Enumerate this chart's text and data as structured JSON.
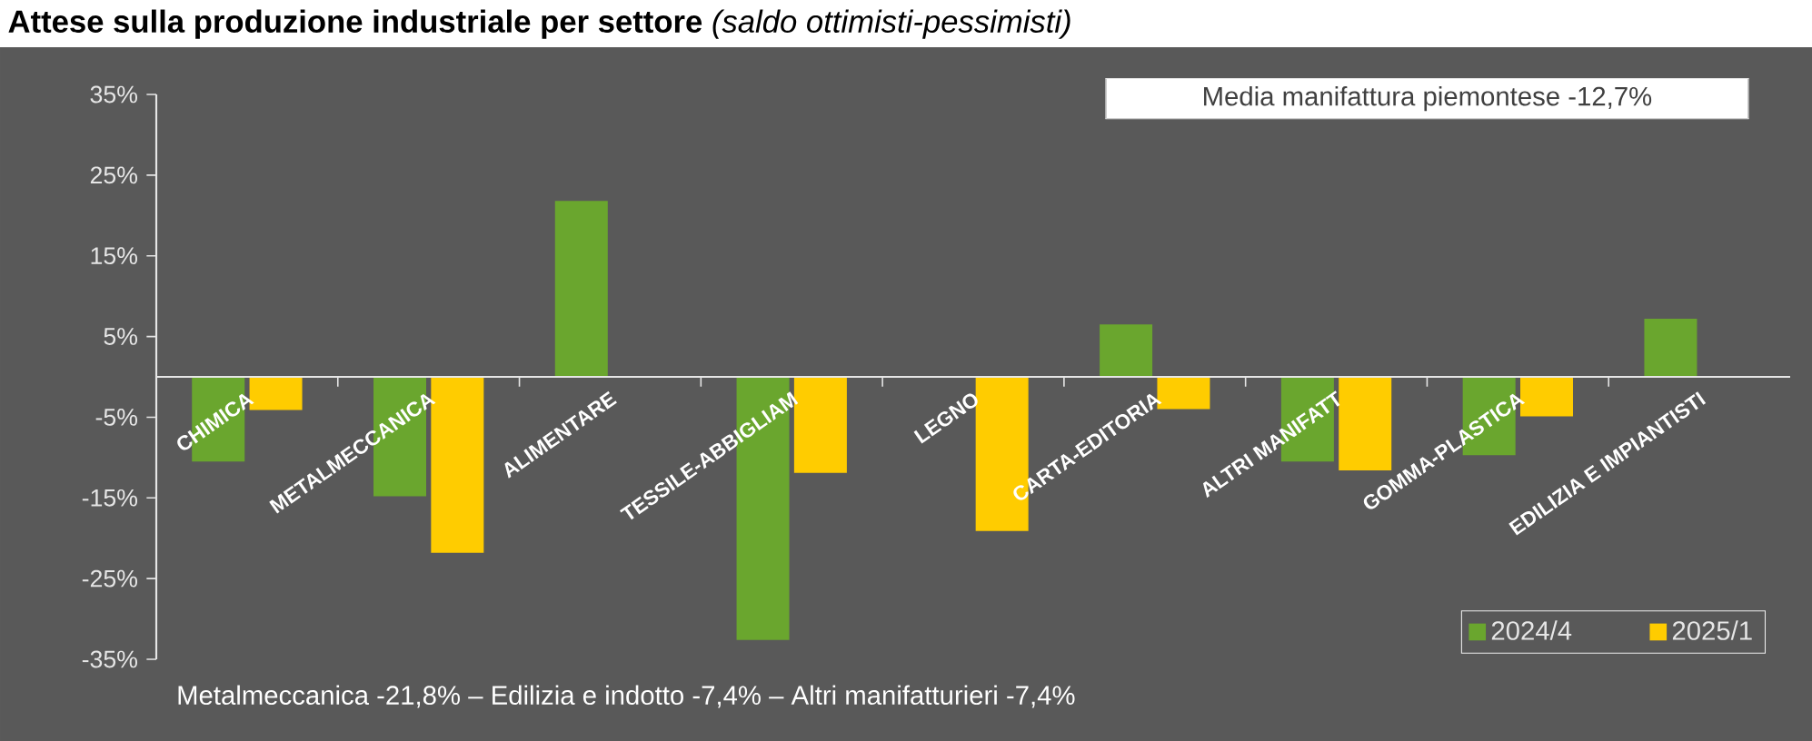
{
  "chart_data": {
    "type": "bar",
    "title": "Attese sulla produzione industriale per settore",
    "subtitle": "(saldo ottimisti-pessimisti)",
    "categories": [
      "CHIMICA",
      "METALMECCANICA",
      "ALIMENTARE",
      "TESSILE-ABBIGLIAM",
      "LEGNO",
      "CARTA-EDITORIA",
      "ALTRI MANIFATT",
      "GOMMA-PLASTICA",
      "EDILIZIA E IMPIANTISTI"
    ],
    "series": [
      {
        "name": "2024/4",
        "color": "#6aa62e",
        "values": [
          -10.5,
          -14.8,
          21.8,
          -32.6,
          null,
          6.5,
          -10.5,
          -9.7,
          7.2
        ]
      },
      {
        "name": "2025/1",
        "color": "#ffcc00",
        "values": [
          -4.1,
          -21.8,
          null,
          -11.9,
          -19.1,
          -4.0,
          -11.6,
          -4.9,
          null
        ]
      }
    ],
    "ylim": [
      -35,
      35
    ],
    "yticks": [
      {
        "value": 35,
        "label": "35%"
      },
      {
        "value": 25,
        "label": "25%"
      },
      {
        "value": 15,
        "label": "15%"
      },
      {
        "value": 5,
        "label": "5%"
      },
      {
        "value": -5,
        "label": "-5%"
      },
      {
        "value": -15,
        "label": "-15%"
      },
      {
        "value": -25,
        "label": "-25%"
      },
      {
        "value": -35,
        "label": "-35%"
      }
    ],
    "grid": false,
    "legend": "bottom right",
    "annotations": [
      "Media manifattura piemontese -12,7%",
      "Metalmeccanica -21,8%  –  Edilizia e indotto -7,4%  –  Altri manifatturieri -7,4%"
    ]
  }
}
